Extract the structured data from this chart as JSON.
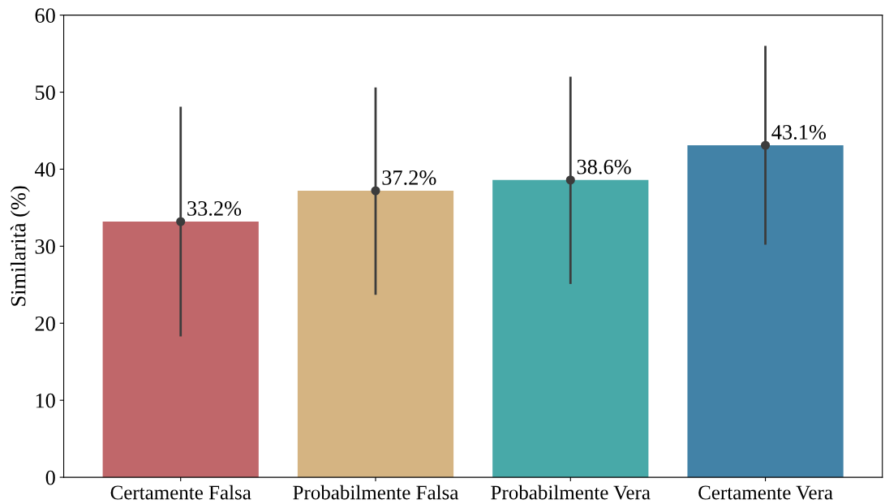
{
  "chart_data": {
    "type": "bar",
    "ylabel": "Similarità (%)",
    "categories": [
      "Certamente Falsa",
      "Probabilmente Falsa",
      "Probabilmente Vera",
      "Certamente Vera"
    ],
    "series": [
      {
        "values": [
          33.2,
          37.2,
          38.6,
          43.1
        ],
        "colors": [
          "#c0676a",
          "#d5b482",
          "#48a9a8",
          "#4282a7"
        ],
        "errors": [
          [
            18.3,
            48.1
          ],
          [
            23.7,
            50.6
          ],
          [
            25.1,
            52.0
          ],
          [
            30.2,
            56.0
          ]
        ],
        "value_labels": [
          "33.2%",
          "37.2%",
          "38.6%",
          "43.1%"
        ]
      },
      {
        "type": "scatter",
        "x": [
          "Certamente Falsa",
          "Probabilmente Falsa",
          "Probabilmente Vera",
          "Certamente Vera"
        ],
        "values": [
          33.2,
          37.2,
          38.6,
          43.1
        ],
        "color": "#3c3c3c",
        "marker": "circle"
      }
    ],
    "ylim": [
      0,
      60
    ],
    "yticks": [
      0,
      10,
      20,
      30,
      40,
      50,
      60
    ],
    "grid": false,
    "legend": false
  }
}
